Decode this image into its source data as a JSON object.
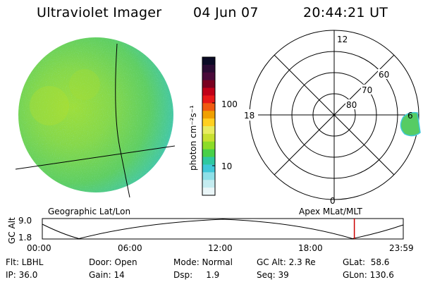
{
  "header": {
    "instrument": "Ultraviolet Imager",
    "date": "04 Jun 07",
    "time": "20:44:21 UT"
  },
  "colorbar": {
    "label": "photon cm⁻²s⁻¹",
    "ticks": [
      "100",
      "10"
    ],
    "colors": [
      "#0a0a25",
      "#2a0b33",
      "#4a0a3a",
      "#7a0020",
      "#c00018",
      "#e81818",
      "#f05a10",
      "#f0a000",
      "#ffd020",
      "#e8ec60",
      "#c8e030",
      "#8cdc28",
      "#48d048",
      "#2ec8a0",
      "#40c8d8",
      "#8ee0e8",
      "#c4ecf0",
      "#eaf6f8"
    ]
  },
  "polar_plot": {
    "labels": {
      "top": "12",
      "left": "18",
      "right": "6",
      "bottom": "0"
    },
    "lat_labels": [
      "60",
      "70",
      "80"
    ]
  },
  "timeline": {
    "left_title": "Geographic Lat/Lon",
    "right_title": "Apex MLat/MLT",
    "y_axis_label": "GC Alt",
    "y_ticks": [
      "9.0",
      "1.8"
    ],
    "x_ticks": [
      "00:00",
      "06:00",
      "12:00",
      "18:00",
      "23:59"
    ],
    "marker_color": "#cc0000"
  },
  "chart_data": {
    "type": "line",
    "xlabel": "",
    "ylabel": "GC Alt",
    "x": [
      "00:00",
      "06:00",
      "12:00",
      "18:00",
      "23:59"
    ],
    "ylim": [
      1.8,
      9.0
    ],
    "marker_x": "20:44"
  },
  "info": {
    "flt": "Flt: LBHL",
    "door": "Door: Open",
    "mode": "Mode: Normal",
    "gc_alt": "GC Alt: 2.3 Re",
    "glat": "GLat:  58.6",
    "ip": "IP: 36.0",
    "gain": "Gain: 14",
    "dsp": "Dsp:     1.9",
    "seq": "Seq: 39",
    "glon": "GLon: 130.6"
  }
}
